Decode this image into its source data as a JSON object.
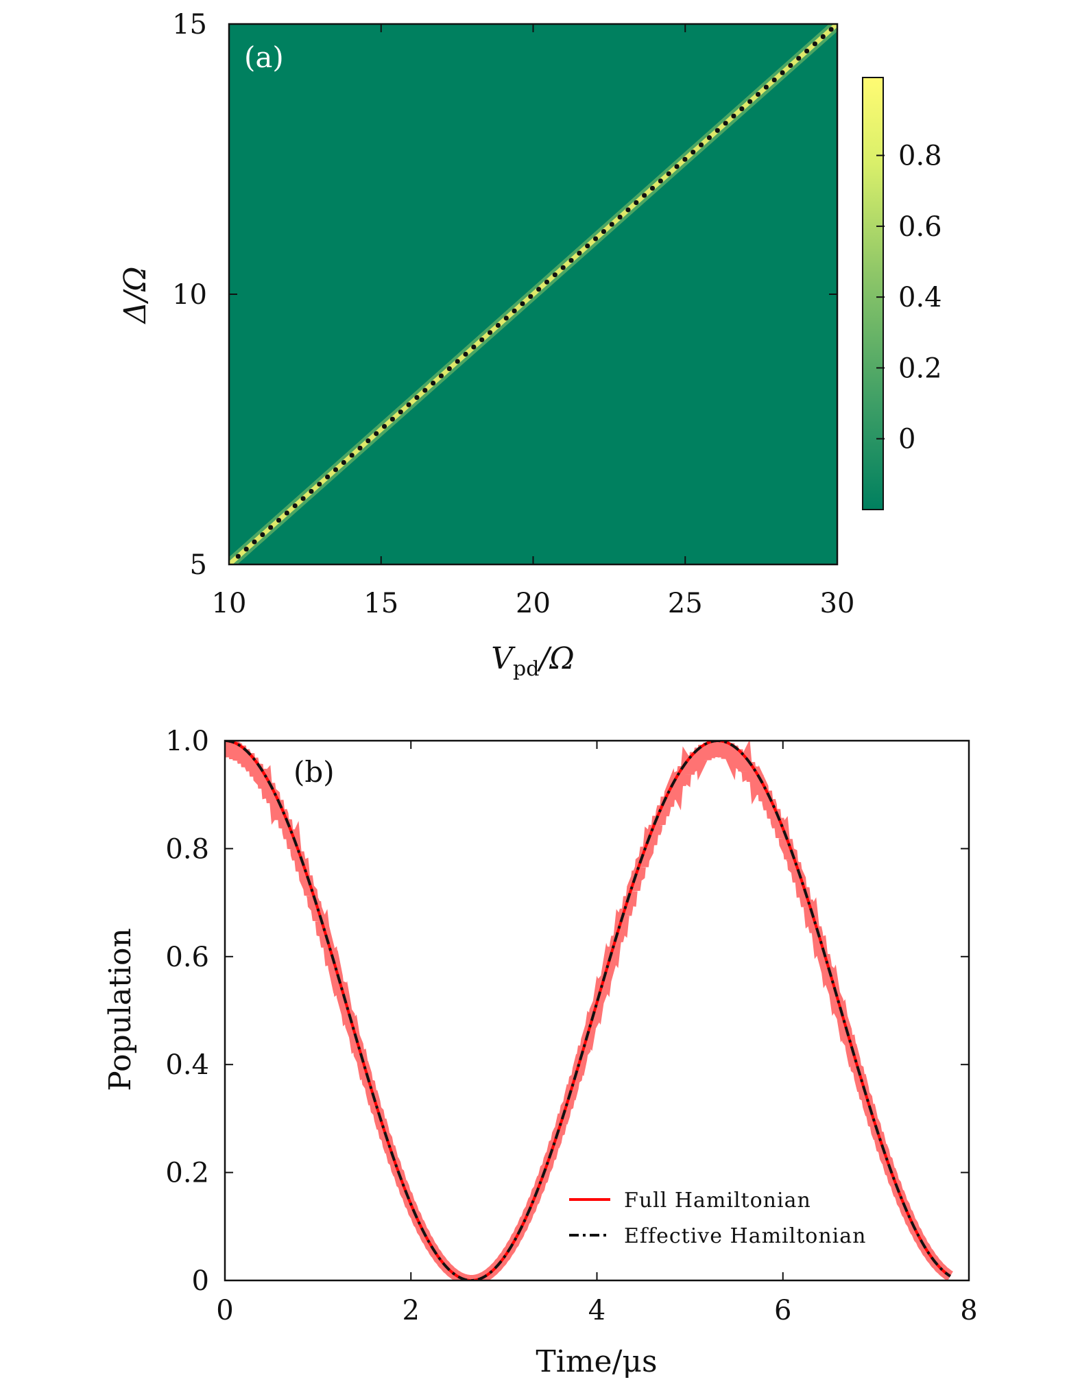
{
  "chart_data": [
    {
      "type": "heatmap",
      "panel_label": "(a)",
      "xlabel_main": "V",
      "xlabel_sub": "pd",
      "xlabel_tail": "/Ω",
      "ylabel": "Δ/Ω",
      "xlim": [
        10,
        30
      ],
      "ylim": [
        5,
        15
      ],
      "x_ticks": [
        "10",
        "15",
        "20",
        "25",
        "30"
      ],
      "y_ticks": [
        "5",
        "10",
        "15"
      ],
      "x_tick_values": [
        10,
        15,
        20,
        25,
        30
      ],
      "y_tick_values": [
        5,
        10,
        15
      ],
      "background_value": -0.2,
      "colorbar": {
        "range": [
          -0.2,
          1.02
        ],
        "ticks": [
          "0",
          "0.2",
          "0.4",
          "0.6",
          "0.8"
        ],
        "tick_values": [
          0,
          0.2,
          0.4,
          0.6,
          0.8
        ],
        "colors": [
          "#00805f",
          "#3f9f66",
          "#8fc768",
          "#d9ef6a",
          "#fffb73"
        ]
      },
      "resonance_line": {
        "description": "Δ = V_pd / 2",
        "slope": 0.5,
        "intercept": 0,
        "x_start": 10.3,
        "x_end": 29.8,
        "dot_count": 74,
        "color": "#dfe96a"
      },
      "background_color": "#00805f"
    },
    {
      "type": "line",
      "panel_label": "(b)",
      "xlabel": "Time/μs",
      "ylabel": "Population",
      "xlim": [
        0,
        8
      ],
      "ylim": [
        0,
        1
      ],
      "x_ticks": [
        "0",
        "2",
        "4",
        "6",
        "8"
      ],
      "y_ticks": [
        "0",
        "0.2",
        "0.4",
        "0.6",
        "0.8",
        "1.0"
      ],
      "x_tick_values": [
        0,
        2,
        4,
        6,
        8
      ],
      "y_tick_values": [
        0,
        0.2,
        0.4,
        0.6,
        0.8,
        1.0
      ],
      "period": 5.3,
      "t_max": 7.8,
      "series": [
        {
          "name": "Full Hamiltonian",
          "color": "#ff0000",
          "style": "solid",
          "oscillation_amplitude": 0.03
        },
        {
          "name": "Effective Hamiltonian",
          "color": "#111111",
          "style": "dash-dot"
        }
      ],
      "legend_position": "bottom-right"
    }
  ]
}
